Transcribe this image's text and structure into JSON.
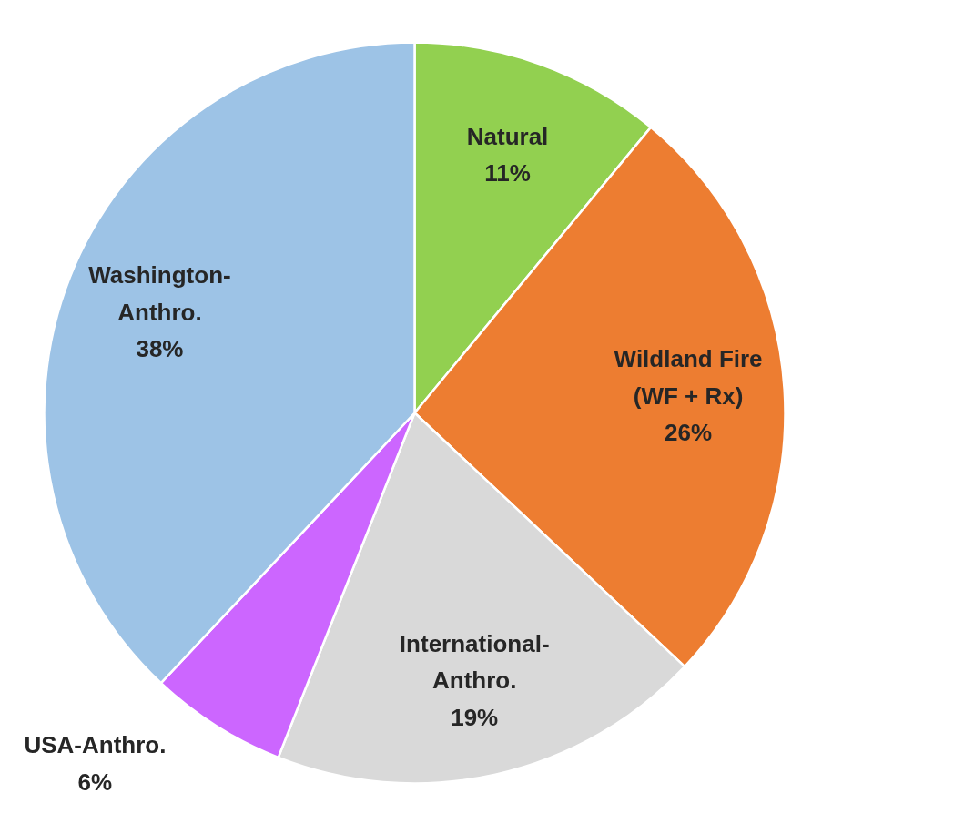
{
  "chart_data": {
    "type": "pie",
    "categories": [
      "Natural",
      "Wildland Fire (WF + Rx)",
      "International-Anthro.",
      "USA-Anthro.",
      "Washington-Anthro."
    ],
    "values": [
      11,
      26,
      19,
      6,
      38
    ],
    "colors": [
      "#92d050",
      "#ed7d31",
      "#d9d9d9",
      "#cc66ff",
      "#9dc3e6"
    ],
    "value_labels": [
      "11%",
      "26%",
      "19%",
      "6%",
      "38%"
    ],
    "legend": false
  }
}
